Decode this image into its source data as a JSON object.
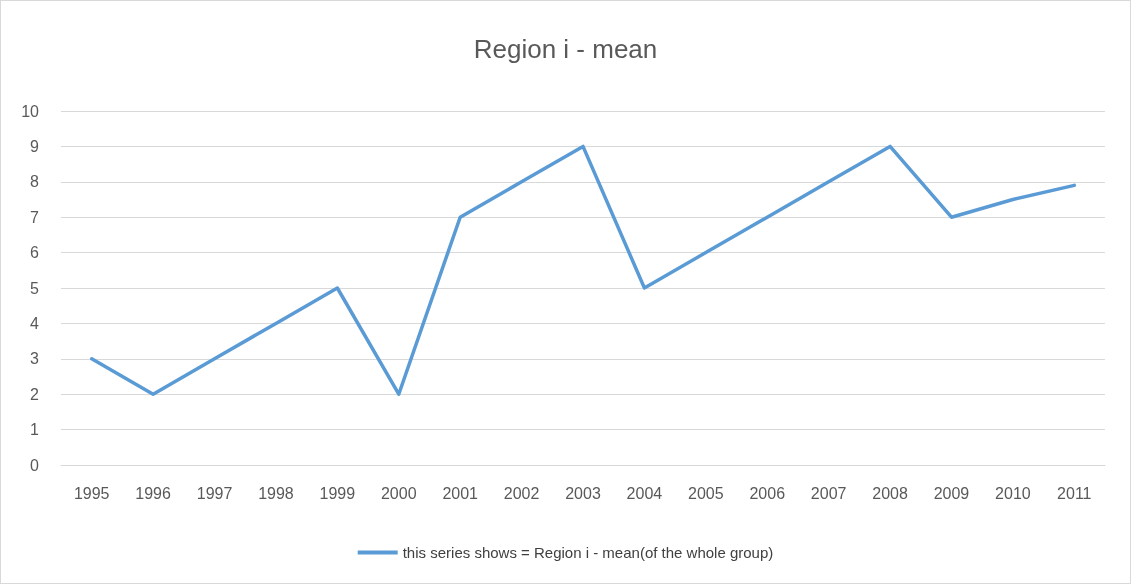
{
  "chart_data": {
    "type": "line",
    "title": "Region i - mean",
    "categories": [
      "1995",
      "1996",
      "1997",
      "1998",
      "1999",
      "2000",
      "2001",
      "2002",
      "2003",
      "2004",
      "2005",
      "2006",
      "2007",
      "2008",
      "2009",
      "2010",
      "2011"
    ],
    "series": [
      {
        "name": "this series shows = Region i - mean(of the whole group)",
        "color": "#5b9bd5",
        "values": [
          3,
          2,
          3,
          4,
          5,
          2,
          7,
          8,
          9,
          5,
          6,
          7,
          8,
          9,
          7,
          7.5,
          7.9
        ]
      }
    ],
    "ylim": [
      0,
      10
    ],
    "yticks": [
      0,
      1,
      2,
      3,
      4,
      5,
      6,
      7,
      8,
      9,
      10
    ],
    "grid": "y",
    "legend": "bottom",
    "marker": "none",
    "line_style": "solid"
  }
}
